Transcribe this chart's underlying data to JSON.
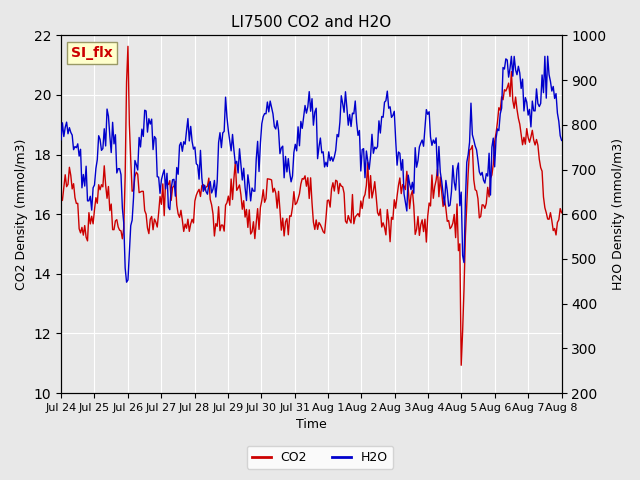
{
  "title": "LI7500 CO2 and H2O",
  "xlabel": "Time",
  "ylabel_left": "CO2 Density (mmol/m3)",
  "ylabel_right": "H2O Density (mmol/m3)",
  "ylim_left": [
    10,
    22
  ],
  "ylim_right": [
    200,
    1000
  ],
  "yticks_left": [
    10,
    12,
    14,
    16,
    18,
    20,
    22
  ],
  "yticks_right": [
    200,
    300,
    400,
    500,
    600,
    700,
    800,
    900,
    1000
  ],
  "xtick_labels": [
    "Jul 24",
    "Jul 25",
    "Jul 26",
    "Jul 27",
    "Jul 28",
    "Jul 29",
    "Jul 30",
    "Jul 31",
    "Aug 1",
    "Aug 2",
    "Aug 3",
    "Aug 4",
    "Aug 5",
    "Aug 6",
    "Aug 7",
    "Aug 8"
  ],
  "annotation_text": "SI_flx",
  "annotation_color": "#cc0000",
  "annotation_bg": "#ffffcc",
  "annotation_border": "#999966",
  "legend_labels": [
    "CO2",
    "H2O"
  ],
  "co2_color": "#cc0000",
  "h2o_color": "#0000cc",
  "bg_color": "#e8e8e8",
  "plot_bg": "#f0f0f0",
  "grid_color": "#ffffff",
  "linewidth": 1.0,
  "n_points": 360
}
